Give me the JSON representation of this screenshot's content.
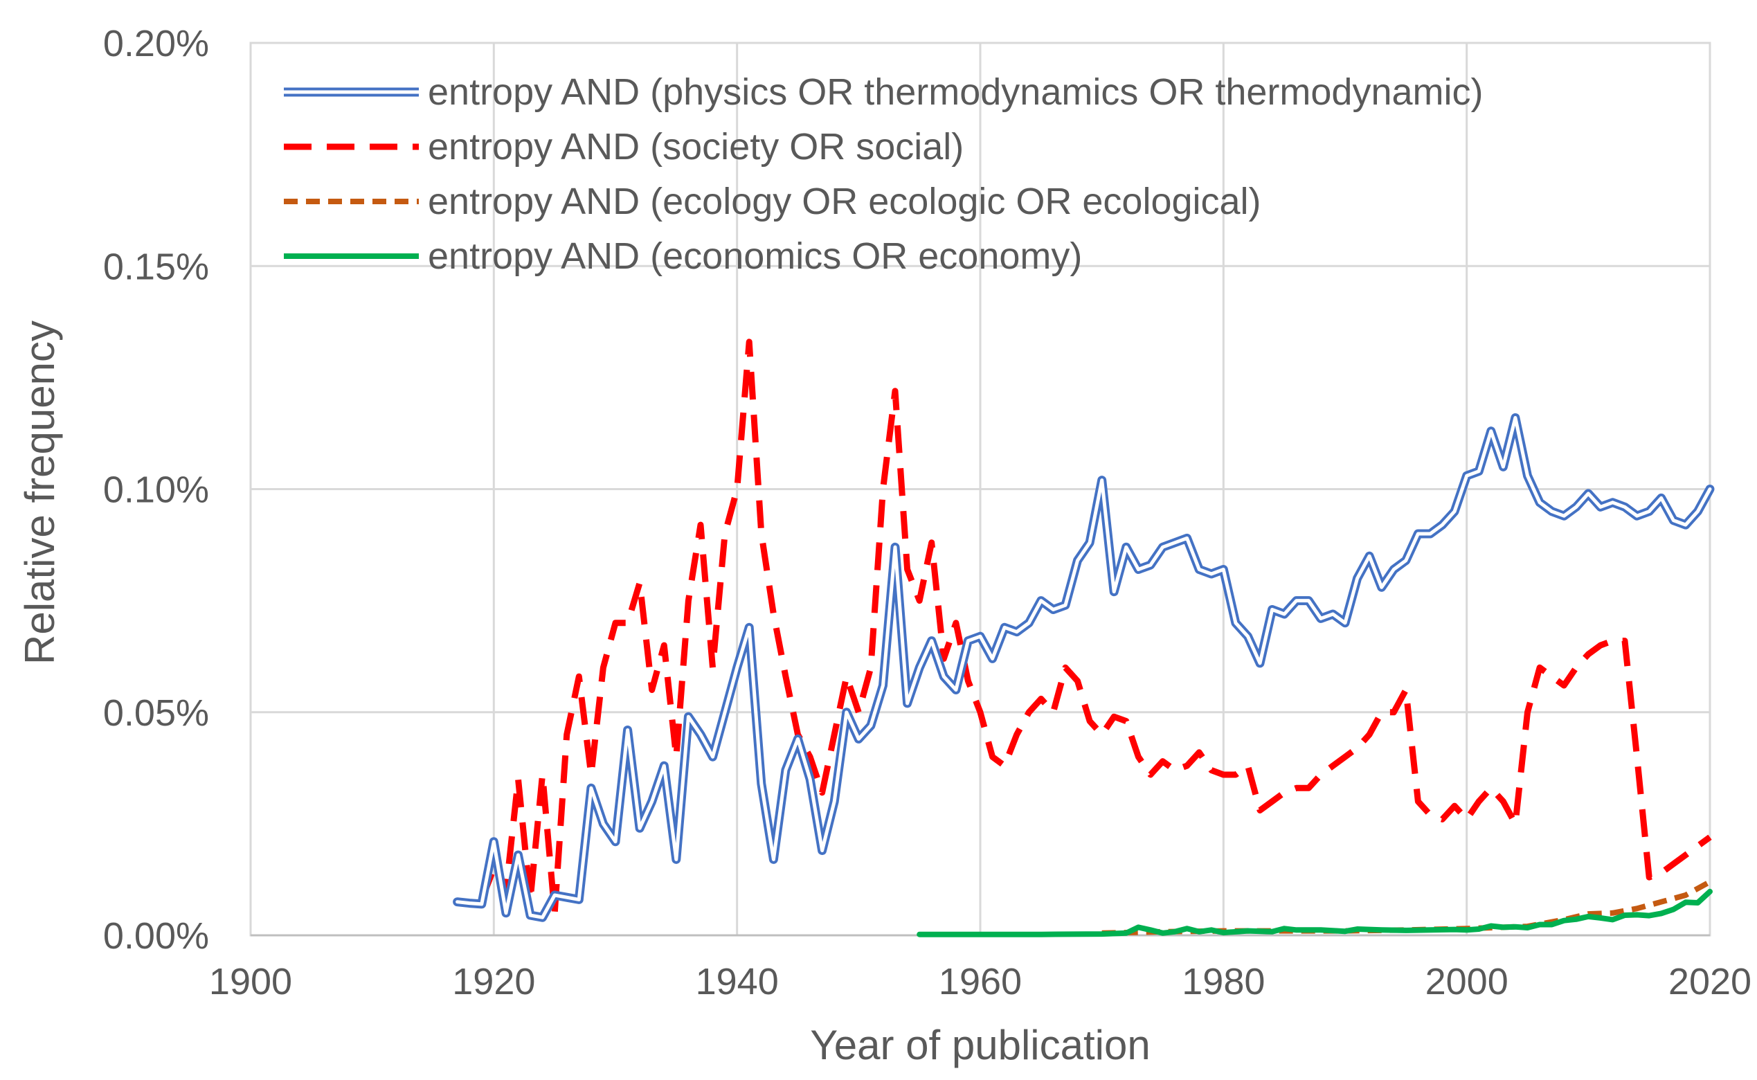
{
  "chart_data": {
    "type": "line",
    "title": "",
    "xlabel": "Year of publication",
    "ylabel": "Relative frequency",
    "xlim": [
      1900,
      2020
    ],
    "ylim": [
      0,
      0.2
    ],
    "x_ticks": [
      1900,
      1920,
      1940,
      1960,
      1980,
      2000,
      2020
    ],
    "x_tick_labels": [
      "1900",
      "1920",
      "1940",
      "1960",
      "1980",
      "2000",
      "2020"
    ],
    "y_ticks": [
      0,
      0.05,
      0.1,
      0.15,
      0.2
    ],
    "y_tick_labels": [
      "0.00%",
      "0.05%",
      "0.10%",
      "0.15%",
      "0.20%"
    ],
    "y_unit": "%",
    "grid": true,
    "legend_position": "top-left",
    "series": [
      {
        "name": "entropy AND (physics OR thermodynamics OR thermodynamic)",
        "color": "#4472C4",
        "style": "double",
        "x": [
          1917,
          1918,
          1919,
          1920,
          1921,
          1922,
          1923,
          1924,
          1925,
          1926,
          1927,
          1928,
          1929,
          1930,
          1931,
          1932,
          1933,
          1934,
          1935,
          1936,
          1937,
          1938,
          1939,
          1940,
          1941,
          1942,
          1943,
          1944,
          1945,
          1946,
          1947,
          1948,
          1949,
          1950,
          1951,
          1952,
          1953,
          1954,
          1955,
          1956,
          1957,
          1958,
          1959,
          1960,
          1961,
          1962,
          1963,
          1964,
          1965,
          1966,
          1967,
          1968,
          1969,
          1970,
          1971,
          1972,
          1973,
          1974,
          1975,
          1976,
          1977,
          1978,
          1979,
          1980,
          1981,
          1982,
          1983,
          1984,
          1985,
          1986,
          1987,
          1988,
          1989,
          1990,
          1991,
          1992,
          1993,
          1994,
          1995,
          1996,
          1997,
          1998,
          1999,
          2000,
          2001,
          2002,
          2003,
          2004,
          2005,
          2006,
          2007,
          2008,
          2009,
          2010,
          2011,
          2012,
          2013,
          2014,
          2015,
          2016,
          2017,
          2018,
          2019,
          2020
        ],
        "values": [
          0.0075,
          0.0072,
          0.007,
          0.021,
          0.005,
          0.018,
          0.0045,
          0.004,
          0.009,
          0.0085,
          0.008,
          0.033,
          0.025,
          0.021,
          0.046,
          0.024,
          0.03,
          0.038,
          0.017,
          0.049,
          0.045,
          0.04,
          0.05,
          0.06,
          0.069,
          0.034,
          0.017,
          0.037,
          0.044,
          0.035,
          0.019,
          0.03,
          0.05,
          0.044,
          0.047,
          0.056,
          0.087,
          0.052,
          0.06,
          0.066,
          0.058,
          0.055,
          0.066,
          0.067,
          0.062,
          0.069,
          0.068,
          0.07,
          0.075,
          0.073,
          0.074,
          0.084,
          0.088,
          0.102,
          0.077,
          0.087,
          0.082,
          0.083,
          0.087,
          0.088,
          0.089,
          0.082,
          0.081,
          0.082,
          0.07,
          0.067,
          0.061,
          0.073,
          0.072,
          0.075,
          0.075,
          0.071,
          0.072,
          0.07,
          0.08,
          0.085,
          0.078,
          0.082,
          0.084,
          0.09,
          0.09,
          0.092,
          0.095,
          0.103,
          0.104,
          0.113,
          0.105,
          0.116,
          0.103,
          0.097,
          0.095,
          0.094,
          0.096,
          0.099,
          0.096,
          0.097,
          0.096,
          0.094,
          0.095,
          0.098,
          0.093,
          0.092,
          0.095,
          0.1
        ]
      },
      {
        "name": "entropy AND (society OR social)",
        "color": "#FF0000",
        "style": "dashed",
        "x": [
          1919,
          1920,
          1921,
          1922,
          1923,
          1924,
          1925,
          1926,
          1927,
          1928,
          1929,
          1930,
          1931,
          1932,
          1933,
          1934,
          1935,
          1936,
          1937,
          1938,
          1939,
          1940,
          1941,
          1942,
          1943,
          1944,
          1945,
          1946,
          1947,
          1948,
          1949,
          1950,
          1951,
          1952,
          1953,
          1954,
          1955,
          1956,
          1957,
          1958,
          1959,
          1960,
          1961,
          1962,
          1963,
          1964,
          1965,
          1966,
          1967,
          1968,
          1969,
          1970,
          1971,
          1972,
          1973,
          1974,
          1975,
          1976,
          1977,
          1978,
          1979,
          1980,
          1981,
          1982,
          1983,
          1984,
          1985,
          1986,
          1987,
          1988,
          1989,
          1990,
          1991,
          1992,
          1993,
          1994,
          1995,
          1996,
          1997,
          1998,
          1999,
          2000,
          2001,
          2002,
          2003,
          2004,
          2005,
          2006,
          2007,
          2008,
          2009,
          2010,
          2011,
          2012,
          2013,
          2014,
          2015,
          2016,
          2017,
          2018,
          2019,
          2020
        ],
        "values": [
          0.008,
          0.015,
          0.01,
          0.035,
          0.008,
          0.036,
          0.005,
          0.045,
          0.058,
          0.036,
          0.06,
          0.07,
          0.07,
          0.079,
          0.055,
          0.065,
          0.04,
          0.075,
          0.092,
          0.06,
          0.09,
          0.1,
          0.133,
          0.09,
          0.072,
          0.058,
          0.045,
          0.04,
          0.032,
          0.045,
          0.058,
          0.05,
          0.06,
          0.1,
          0.122,
          0.082,
          0.075,
          0.088,
          0.062,
          0.07,
          0.057,
          0.05,
          0.04,
          0.038,
          0.045,
          0.05,
          0.053,
          0.05,
          0.06,
          0.057,
          0.048,
          0.045,
          0.049,
          0.048,
          0.04,
          0.036,
          0.039,
          0.037,
          0.038,
          0.041,
          0.037,
          0.036,
          0.036,
          0.038,
          0.028,
          0.03,
          0.032,
          0.033,
          0.033,
          0.036,
          0.038,
          0.04,
          0.042,
          0.045,
          0.05,
          0.05,
          0.055,
          0.03,
          0.027,
          0.026,
          0.029,
          0.026,
          0.03,
          0.033,
          0.03,
          0.025,
          0.05,
          0.06,
          0.058,
          0.056,
          0.06,
          0.063,
          0.065,
          0.066,
          0.066,
          0.04,
          0.013,
          0.014,
          0.016,
          0.018,
          0.02,
          0.022
        ]
      },
      {
        "name": "entropy AND (ecology OR ecologic OR ecological)",
        "color": "#C55A11",
        "style": "dashed",
        "x": [
          1970,
          1975,
          1980,
          1985,
          1990,
          1995,
          2000,
          2005,
          2008,
          2010,
          2012,
          2014,
          2016,
          2018,
          2020
        ],
        "values": [
          0.0005,
          0.0008,
          0.001,
          0.001,
          0.001,
          0.0012,
          0.0015,
          0.002,
          0.0035,
          0.0048,
          0.005,
          0.006,
          0.0075,
          0.009,
          0.012
        ]
      },
      {
        "name": "entropy AND (economics OR economy)",
        "color": "#00B050",
        "style": "solid",
        "x": [
          1955,
          1960,
          1965,
          1970,
          1972,
          1973,
          1974,
          1975,
          1976,
          1977,
          1978,
          1979,
          1980,
          1982,
          1984,
          1985,
          1986,
          1988,
          1990,
          1991,
          1993,
          1995,
          1997,
          1999,
          2000,
          2001,
          2002,
          2003,
          2004,
          2005,
          2006,
          2007,
          2008,
          2009,
          2010,
          2011,
          2012,
          2013,
          2014,
          2015,
          2016,
          2017,
          2018,
          2019,
          2020
        ],
        "values": [
          0.0002,
          0.0002,
          0.0002,
          0.0003,
          0.0005,
          0.0018,
          0.0012,
          0.0005,
          0.0008,
          0.0015,
          0.0008,
          0.0012,
          0.0006,
          0.001,
          0.0008,
          0.0015,
          0.0012,
          0.0012,
          0.0009,
          0.0014,
          0.0012,
          0.0011,
          0.0012,
          0.0013,
          0.0012,
          0.0014,
          0.0021,
          0.0018,
          0.0019,
          0.0017,
          0.0024,
          0.0024,
          0.0033,
          0.0036,
          0.0042,
          0.0039,
          0.0035,
          0.0045,
          0.0046,
          0.0044,
          0.0049,
          0.0058,
          0.0074,
          0.0073,
          0.0098
        ]
      }
    ]
  }
}
